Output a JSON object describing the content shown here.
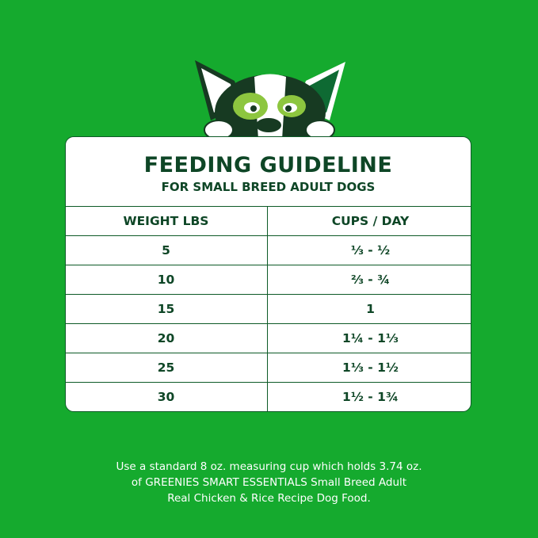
{
  "title": "FEEDING GUIDELINE",
  "subtitle": "FOR SMALL BREED ADULT DOGS",
  "table": {
    "headers": [
      "WEIGHT LBS",
      "CUPS / DAY"
    ],
    "rows": [
      [
        "5",
        "⅓ - ½"
      ],
      [
        "10",
        "⅔ - ¾"
      ],
      [
        "15",
        "1"
      ],
      [
        "20",
        "1¼ - 1⅓"
      ],
      [
        "25",
        "1⅓ - 1½"
      ],
      [
        "30",
        "1½ - 1¾"
      ]
    ]
  },
  "note": [
    "Use a standard 8 oz. measuring cup which holds 3.74 oz.",
    "of GREENIES SMART ESSENTIALS Small Breed Adult",
    "Real Chicken & Rice Recipe Dog Food."
  ],
  "colors": {
    "background": "#15aa2e",
    "text": "#0e4626",
    "card": "#ffffff"
  }
}
